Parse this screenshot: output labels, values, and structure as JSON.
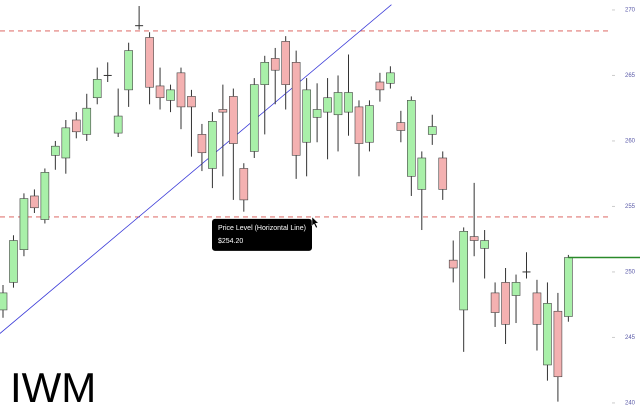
{
  "chart_data": {
    "type": "candlestick",
    "title": "IWM",
    "open": [
      247.1,
      249.2,
      251.7,
      255.8,
      254.0,
      258.9,
      258.7,
      261.6,
      260.5,
      263.3,
      265.0,
      260.6,
      263.9,
      268.8,
      267.9,
      264.2,
      263.1,
      265.2,
      263.4,
      260.5,
      257.9,
      262.4,
      263.4,
      257.9,
      259.2,
      264.3,
      266.3,
      267.6,
      266.0,
      259.9,
      261.8,
      262.2,
      262.0,
      262.2,
      262.6,
      259.9,
      264.5,
      264.4,
      261.4,
      257.3,
      256.3,
      260.5,
      258.7,
      250.9,
      247.1,
      252.7,
      251.8,
      248.4,
      249.2,
      248.2,
      250.0,
      248.4,
      242.9,
      247.0,
      246.6
    ],
    "high": [
      249.0,
      252.8,
      256.0,
      256.3,
      257.9,
      260.0,
      261.6,
      262.2,
      263.6,
      265.6,
      266.0,
      264.0,
      267.5,
      270.3,
      268.3,
      265.6,
      264.3,
      265.6,
      263.9,
      261.3,
      262.2,
      264.3,
      264.0,
      258.3,
      264.8,
      266.5,
      267.1,
      268.0,
      266.9,
      264.8,
      264.4,
      264.8,
      265.0,
      266.6,
      263.1,
      263.1,
      265.2,
      265.7,
      262.3,
      263.4,
      259.2,
      262.0,
      259.2,
      252.4,
      253.4,
      256.8,
      253.2,
      249.2,
      250.3,
      249.8,
      251.5,
      249.4,
      249.2,
      248.4,
      251.3
    ],
    "low": [
      246.5,
      248.8,
      251.2,
      254.5,
      253.7,
      257.8,
      257.5,
      260.2,
      260.0,
      262.8,
      264.5,
      260.3,
      262.6,
      268.5,
      262.8,
      262.4,
      262.2,
      260.9,
      258.8,
      257.7,
      256.4,
      257.3,
      255.5,
      254.6,
      258.7,
      260.5,
      262.8,
      262.4,
      257.1,
      257.3,
      259.9,
      258.6,
      259.2,
      260.4,
      257.3,
      259.2,
      263.0,
      264.0,
      259.9,
      255.8,
      253.2,
      259.7,
      255.5,
      249.2,
      243.9,
      251.2,
      249.5,
      245.8,
      244.5,
      246.1,
      249.5,
      244.0,
      241.7,
      240.1,
      246.2
    ],
    "close": [
      248.4,
      252.4,
      255.6,
      254.9,
      257.6,
      259.6,
      261.0,
      260.7,
      262.5,
      264.7,
      265.0,
      261.9,
      266.9,
      268.8,
      264.1,
      263.3,
      263.9,
      262.6,
      262.6,
      259.1,
      261.5,
      262.2,
      259.8,
      255.5,
      264.3,
      266.0,
      265.4,
      264.3,
      258.9,
      263.9,
      262.4,
      263.3,
      263.7,
      263.7,
      259.8,
      262.7,
      263.9,
      265.2,
      260.8,
      263.1,
      258.7,
      261.1,
      256.3,
      250.3,
      253.1,
      252.4,
      252.4,
      246.9,
      246.0,
      249.2,
      250.0,
      246.0,
      247.6,
      242.0,
      251.1
    ],
    "up_color": "#a9f0a9",
    "down_color": "#f4b1b1",
    "ylim": [
      238.85,
      270.76
    ],
    "yticks": [
      240,
      245,
      250,
      255,
      260,
      265,
      270
    ],
    "horizontal_levels": [
      {
        "value": 268.4
      },
      {
        "value": 254.2,
        "name": "Price Level (Horizontal Line)",
        "value_label": "$254.20"
      }
    ],
    "trendline": {
      "x": [
        -0.3,
        37.1
      ],
      "y": [
        245.3,
        270.4
      ],
      "color": "#3a3ad8"
    },
    "last_price": {
      "value": 251.1,
      "color": "#2a8a2a"
    }
  }
}
